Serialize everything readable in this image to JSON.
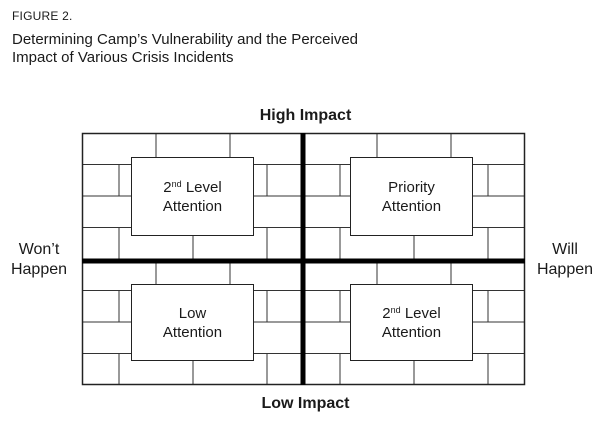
{
  "figure_label": "FIGURE 2.",
  "title_line1": "Determining Camp’s Vulnerability and the Perceived",
  "title_line2": "Impact of Various Crisis Incidents",
  "axes": {
    "top": "High Impact",
    "bottom": "Low Impact",
    "left_line1": "Won’t",
    "left_line2": "Happen",
    "right_line1": "Will",
    "right_line2": "Happen"
  },
  "quadrants": {
    "top_left": {
      "num": "2",
      "ord": "nd",
      "line1_rest": " Level",
      "line2": "Attention"
    },
    "top_right": {
      "line1": "Priority",
      "line2": "Attention"
    },
    "bottom_left": {
      "line1": "Low",
      "line2": "Attention"
    },
    "bottom_right": {
      "num": "2",
      "ord": "nd",
      "line1_rest": " Level",
      "line2": "Attention"
    }
  }
}
